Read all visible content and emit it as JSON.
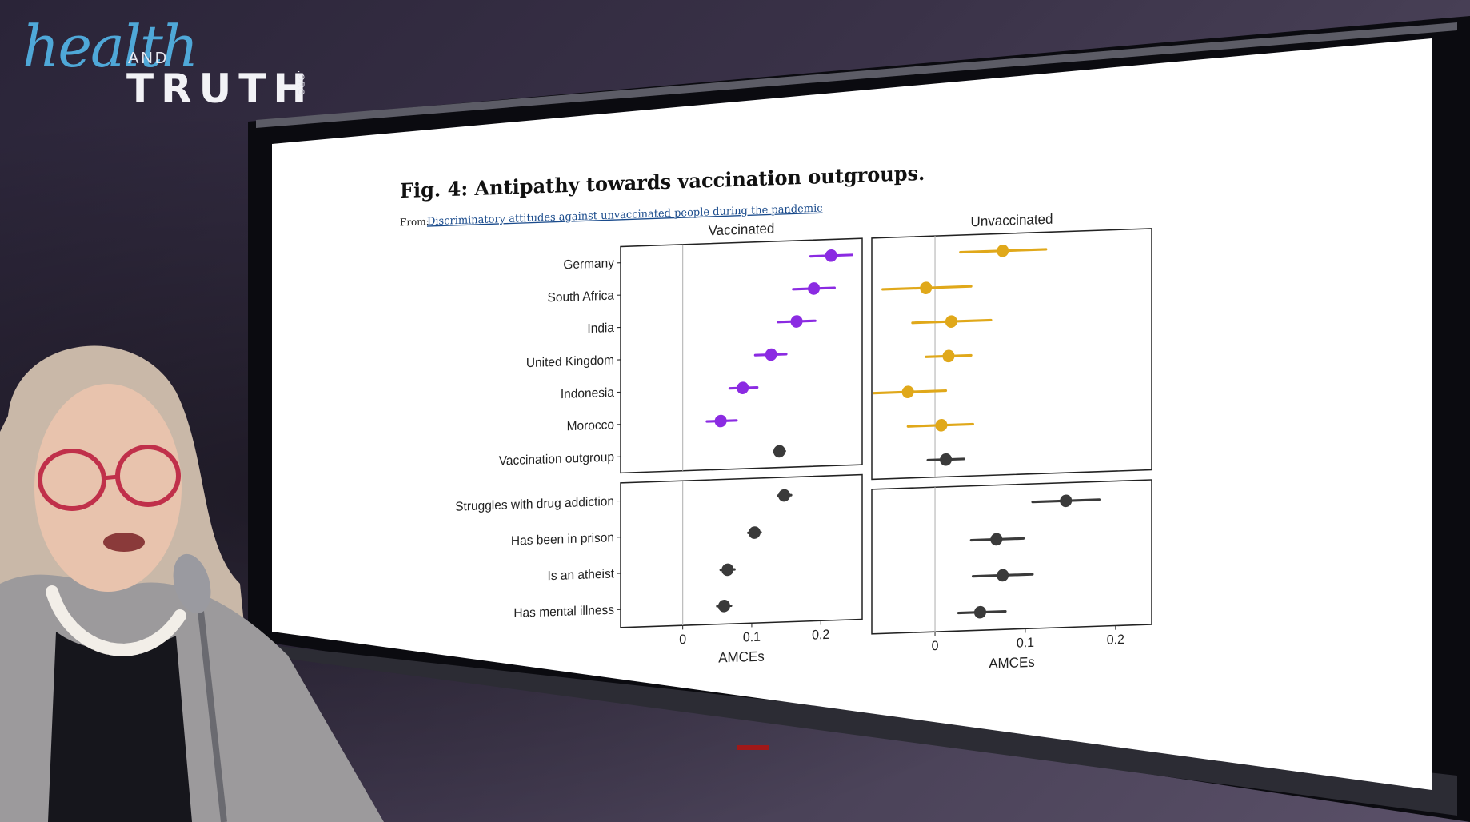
{
  "logo": {
    "health": "health",
    "and": "AND",
    "truth": "TRUTH",
    "org": ".ORG"
  },
  "figure": {
    "title": "Fig. 4: Antipathy towards vaccination outgroups.",
    "from_label": "From:",
    "source_link": "Discriminatory attitudes against unvaccinated people during the pandemic"
  },
  "colors": {
    "purple": "#8b2be2",
    "gold": "#e0a81a",
    "dark": "#3a3a3a"
  },
  "chart_data": [
    {
      "type": "scatter",
      "panel": "top-left",
      "title": "Vaccinated",
      "categories": [
        "Germany",
        "South Africa",
        "India",
        "United Kingdom",
        "Indonesia",
        "Morocco",
        "Vaccination outgroup"
      ],
      "values": [
        0.215,
        0.19,
        0.165,
        0.128,
        0.087,
        0.055,
        0.14
      ],
      "ci_low": [
        0.185,
        0.16,
        0.138,
        0.105,
        0.068,
        0.035,
        0.132
      ],
      "ci_high": [
        0.245,
        0.22,
        0.192,
        0.15,
        0.108,
        0.078,
        0.148
      ],
      "point_colors": [
        "purple",
        "purple",
        "purple",
        "purple",
        "purple",
        "purple",
        "dark"
      ],
      "xlim": [
        -0.09,
        0.26
      ]
    },
    {
      "type": "scatter",
      "panel": "top-right",
      "title": "Unvaccinated",
      "categories": [
        "Germany",
        "South Africa",
        "India",
        "United Kingdom",
        "Indonesia",
        "Morocco",
        "Vaccination outgroup"
      ],
      "values": [
        0.075,
        -0.01,
        0.018,
        0.015,
        -0.03,
        0.007,
        0.012
      ],
      "ci_low": [
        0.028,
        -0.058,
        -0.025,
        -0.01,
        -0.068,
        -0.03,
        -0.008
      ],
      "ci_high": [
        0.123,
        0.04,
        0.062,
        0.04,
        0.012,
        0.042,
        0.032
      ],
      "point_colors": [
        "gold",
        "gold",
        "gold",
        "gold",
        "gold",
        "gold",
        "dark"
      ],
      "xlim": [
        -0.07,
        0.24
      ]
    },
    {
      "type": "scatter",
      "panel": "bottom-left",
      "categories": [
        "Struggles with drug addiction",
        "Has been in prison",
        "Is an atheist",
        "Has mental illness"
      ],
      "values": [
        0.147,
        0.104,
        0.065,
        0.06
      ],
      "ci_low": [
        0.138,
        0.095,
        0.055,
        0.05
      ],
      "ci_high": [
        0.157,
        0.113,
        0.075,
        0.07
      ],
      "point_colors": [
        "dark",
        "dark",
        "dark",
        "dark"
      ],
      "xlim": [
        -0.09,
        0.26
      ],
      "xticks": [
        "0",
        "0.1",
        "0.2"
      ],
      "xlabel": "AMCEs"
    },
    {
      "type": "scatter",
      "panel": "bottom-right",
      "categories": [
        "Struggles with drug addiction",
        "Has been in prison",
        "Is an atheist",
        "Has mental illness"
      ],
      "values": [
        0.145,
        0.068,
        0.075,
        0.05
      ],
      "ci_low": [
        0.108,
        0.04,
        0.042,
        0.026
      ],
      "ci_high": [
        0.182,
        0.098,
        0.108,
        0.078
      ],
      "point_colors": [
        "dark",
        "dark",
        "dark",
        "dark"
      ],
      "xlim": [
        -0.07,
        0.24
      ],
      "xticks": [
        "0",
        "0.1",
        "0.2"
      ],
      "xlabel": "AMCEs"
    }
  ]
}
